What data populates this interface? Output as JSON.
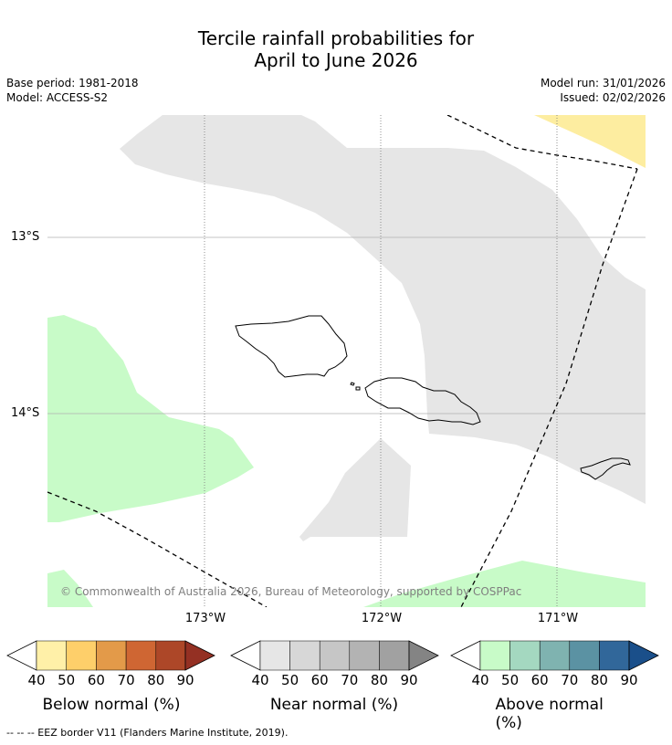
{
  "title": {
    "line1": "Tercile rainfall probabilities for",
    "line2": "April to June 2026"
  },
  "meta": {
    "base_period": "Base period: 1981-2018",
    "model": "Model: ACCESS-S2",
    "model_run": "Model run: 31/01/2026",
    "issued": "Issued: 02/02/2026"
  },
  "map": {
    "lat_labels": [
      "13°S",
      "14°S"
    ],
    "lon_labels": [
      "173°W",
      "172°W",
      "171°W"
    ],
    "copyright": "© Commonwealth of Australia 2026, Bureau of Meteorology, supported by COSPPac",
    "colors": {
      "below": "#fdeda0",
      "near": "#e6e6e6",
      "above": "#c8fbc8",
      "land_edge": "#000000",
      "eez": "#000000"
    }
  },
  "colorbars": [
    {
      "label": "Below normal (%)",
      "ticks": [
        "40",
        "50",
        "60",
        "70",
        "80",
        "90"
      ],
      "colors": [
        "#fff0a8",
        "#fecf6a",
        "#e39a49",
        "#cf6633",
        "#ad4728",
        "#943023"
      ]
    },
    {
      "label": "Near normal (%)",
      "ticks": [
        "40",
        "50",
        "60",
        "70",
        "80",
        "90"
      ],
      "colors": [
        "#e6e6e6",
        "#d7d7d7",
        "#c6c6c6",
        "#b3b3b3",
        "#a1a1a1",
        "#848484"
      ]
    },
    {
      "label": "Above normal (%)",
      "ticks": [
        "40",
        "50",
        "60",
        "70",
        "80",
        "90"
      ],
      "colors": [
        "#c8fbc8",
        "#a4d8c0",
        "#7fb3b0",
        "#5b92a3",
        "#31679a",
        "#1a4f8a"
      ]
    }
  ],
  "footnote": "--  --  -- EEZ border V11 (Flanders Marine Institute, 2019)."
}
